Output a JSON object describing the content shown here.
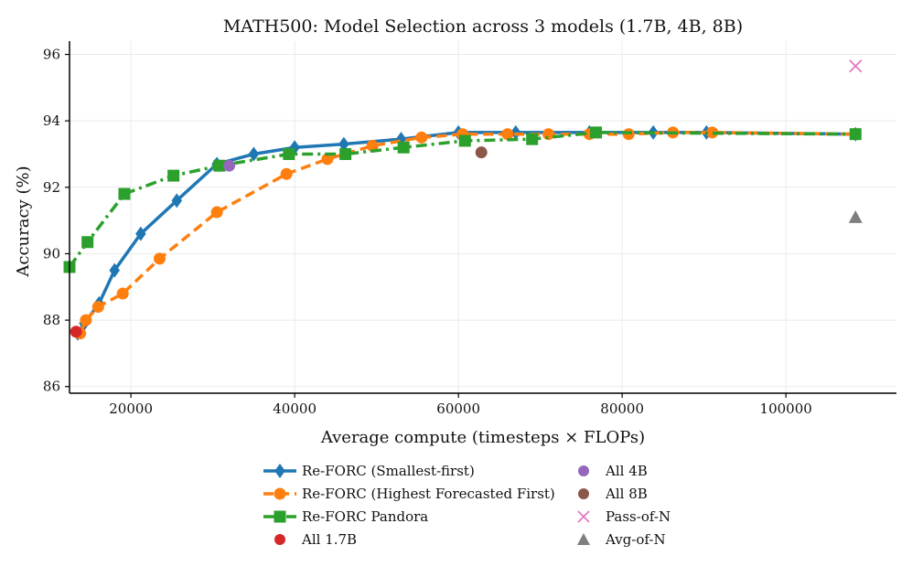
{
  "chart_data": {
    "type": "line",
    "title": "MATH500: Model Selection across 3 models (1.7B, 4B, 8B)",
    "xlabel": "Average compute (timesteps × FLOPs)",
    "ylabel": "Accuracy (%)",
    "xlim": [
      12500,
      113500
    ],
    "ylim": [
      85.8,
      96.4
    ],
    "xticks": [
      20000,
      40000,
      60000,
      80000,
      100000
    ],
    "yticks": [
      86,
      88,
      90,
      92,
      94,
      96
    ],
    "grid": true,
    "legend_position": "bottom",
    "series": [
      {
        "name": "Re-FORC (Smallest-first)",
        "color": "#1f77b4",
        "style": "solid",
        "marker": "diamond",
        "x": [
          13500,
          14300,
          16100,
          18000,
          21200,
          25600,
          30500,
          35000,
          40000,
          46000,
          53000,
          60000,
          67000,
          76000,
          83800,
          90300,
          108500
        ],
        "y": [
          87.6,
          87.9,
          88.5,
          89.5,
          90.6,
          91.6,
          92.7,
          93.0,
          93.2,
          93.3,
          93.45,
          93.65,
          93.65,
          93.65,
          93.65,
          93.65,
          93.6
        ]
      },
      {
        "name": "Re-FORC (Highest Forecasted First)",
        "color": "#ff7f0e",
        "style": "dashed",
        "marker": "circle",
        "x": [
          13800,
          14500,
          16000,
          19000,
          23500,
          30500,
          39000,
          44000,
          49500,
          55500,
          60500,
          66000,
          71000,
          76000,
          80800,
          86200,
          91000,
          108500
        ],
        "y": [
          87.6,
          88.0,
          88.4,
          88.8,
          89.85,
          91.25,
          92.4,
          92.85,
          93.25,
          93.5,
          93.6,
          93.6,
          93.6,
          93.6,
          93.6,
          93.65,
          93.65,
          93.6
        ]
      },
      {
        "name": "Re-FORC Pandora",
        "color": "#2ca02c",
        "style": "dashdot",
        "marker": "square",
        "x": [
          12500,
          14700,
          19200,
          25200,
          30800,
          39300,
          46200,
          53300,
          60800,
          69000,
          76800,
          108500
        ],
        "y": [
          89.6,
          90.35,
          91.8,
          92.35,
          92.65,
          93.0,
          93.0,
          93.2,
          93.4,
          93.45,
          93.65,
          93.6
        ]
      }
    ],
    "points": [
      {
        "name": "All 1.7B",
        "color": "#d62728",
        "marker": "circle",
        "x": 13300,
        "y": 87.65
      },
      {
        "name": "All 4B",
        "color": "#9467bd",
        "marker": "circle",
        "x": 32000,
        "y": 92.65
      },
      {
        "name": "All 8B",
        "color": "#8c564b",
        "marker": "circle",
        "x": 62800,
        "y": 93.05
      },
      {
        "name": "Pass-of-N",
        "color": "#e377c2",
        "marker": "x",
        "x": 108500,
        "y": 95.65
      },
      {
        "name": "Avg-of-N",
        "color": "#7f7f7f",
        "marker": "triangle",
        "x": 108500,
        "y": 91.1
      }
    ]
  }
}
